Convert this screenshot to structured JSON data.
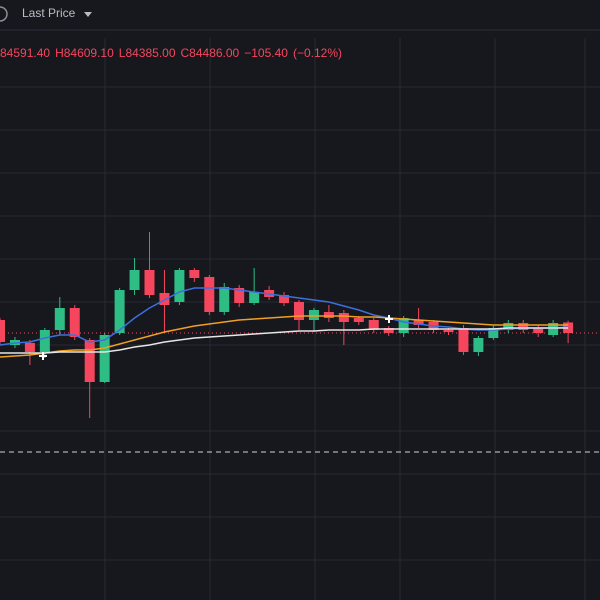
{
  "header": {
    "price_mode": "Last Price"
  },
  "ohlc": [
    "84591.40",
    "H84609.10",
    "L84385.00",
    "C84486.00",
    "−105.40",
    "(−0.12%)"
  ],
  "chart_data": {
    "type": "candlestick",
    "ylim": [
      81816,
      87416
    ],
    "up_color": "#2ebd85",
    "down_color": "#f6465d",
    "open": [
      84616,
      84366,
      84386,
      84296,
      84516,
      84736,
      84416,
      83996,
      84486,
      84916,
      85116,
      84886,
      84796,
      85116,
      85046,
      84696,
      84936,
      84786,
      84916,
      84866,
      84796,
      84616,
      84696,
      84686,
      84636,
      84616,
      84536,
      84486,
      84616,
      84596,
      84516,
      84536,
      84296,
      84436,
      84516,
      84586,
      84536,
      84466,
      84591.4
    ],
    "high": [
      84636,
      84446,
      84416,
      84536,
      84846,
      84766,
      84436,
      84486,
      84936,
      85236,
      85496,
      85116,
      85136,
      85136,
      85066,
      84986,
      84966,
      85136,
      84956,
      84896,
      84816,
      84736,
      84766,
      84716,
      84656,
      84636,
      84556,
      84656,
      84736,
      84616,
      84536,
      84566,
      84456,
      84556,
      84616,
      84616,
      84566,
      84616,
      84609.1
    ],
    "low": [
      84366,
      84336,
      84166,
      84236,
      84466,
      84416,
      83636,
      83986,
      84466,
      84866,
      84836,
      84486,
      84766,
      84996,
      84666,
      84666,
      84746,
      84766,
      84816,
      84756,
      84516,
      84496,
      84596,
      84366,
      84566,
      84486,
      84456,
      84446,
      84536,
      84486,
      84466,
      84266,
      84256,
      84416,
      84486,
      84486,
      84446,
      84446,
      84385
    ],
    "close": [
      84396,
      84416,
      84296,
      84516,
      84736,
      84446,
      83996,
      84466,
      84916,
      85116,
      84866,
      84766,
      85116,
      85036,
      84696,
      84946,
      84786,
      84896,
      84846,
      84786,
      84616,
      84716,
      84636,
      84596,
      84596,
      84516,
      84486,
      84636,
      84566,
      84516,
      84496,
      84296,
      84436,
      84536,
      84586,
      84516,
      84486,
      84586,
      84486
    ],
    "series": [
      {
        "color": "#3d6fe0",
        "values": [
          84366,
          84386,
          84396,
          84436,
          84466,
          84466,
          84396,
          84416,
          84516,
          84636,
          84736,
          84816,
          84896,
          84936,
          84936,
          84936,
          84916,
          84896,
          84876,
          84856,
          84836,
          84816,
          84796,
          84756,
          84716,
          84666,
          84636,
          84596,
          84576,
          84556,
          84546,
          84526,
          84516,
          84516,
          84526,
          84536,
          84536,
          84536,
          84546
        ]
      },
      {
        "color": "#f0a020",
        "values": [
          84246,
          84256,
          84266,
          84286,
          84306,
          84316,
          84316,
          84336,
          84376,
          84416,
          84456,
          84496,
          84526,
          84556,
          84576,
          84596,
          84616,
          84626,
          84636,
          84646,
          84656,
          84656,
          84656,
          84656,
          84646,
          84646,
          84636,
          84626,
          84616,
          84606,
          84596,
          84586,
          84576,
          84566,
          84566,
          84566,
          84566,
          84566,
          84566
        ]
      },
      {
        "color": "#e6e6e6",
        "values": [
          84286,
          84286,
          84286,
          84286,
          84296,
          84296,
          84296,
          84296,
          84316,
          84346,
          84366,
          84396,
          84416,
          84436,
          84446,
          84456,
          84466,
          84476,
          84486,
          84496,
          84506,
          84506,
          84516,
          84516,
          84516,
          84526,
          84526,
          84526,
          84526,
          84526,
          84526,
          84526,
          84526,
          84526,
          84536,
          84536,
          84536,
          84536,
          84536
        ]
      }
    ]
  }
}
